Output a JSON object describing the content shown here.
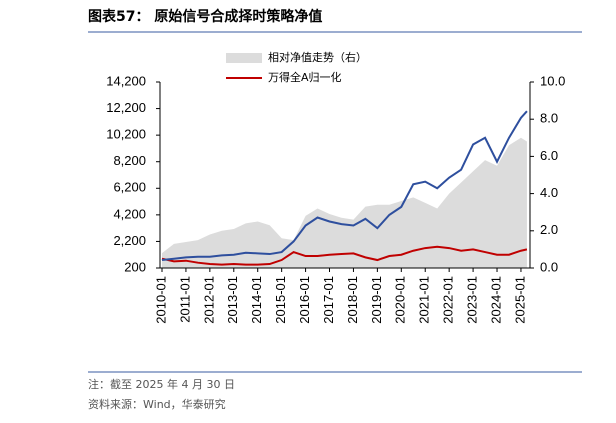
{
  "chart_data": {
    "type": "line",
    "title": "图表57： 原始信号合成择时策略净值",
    "note": "注：截至 2025 年 4 月 30 日",
    "source": "资料来源：Wind，华泰研究",
    "x": [
      "2010-01",
      "2010-07",
      "2011-01",
      "2011-07",
      "2012-01",
      "2012-07",
      "2013-01",
      "2013-07",
      "2014-01",
      "2014-07",
      "2015-01",
      "2015-07",
      "2016-01",
      "2016-07",
      "2017-01",
      "2017-07",
      "2018-01",
      "2018-07",
      "2019-01",
      "2019-07",
      "2020-01",
      "2020-07",
      "2021-01",
      "2021-07",
      "2022-01",
      "2022-07",
      "2023-01",
      "2023-07",
      "2024-01",
      "2024-07",
      "2025-01",
      "2025-04"
    ],
    "series": [
      {
        "name": "相对净值走势（右）",
        "type": "area",
        "axis": "y2",
        "color": "#dcdcdc",
        "values": [
          0.8,
          1.3,
          1.4,
          1.5,
          1.8,
          2.0,
          2.1,
          2.4,
          2.5,
          2.3,
          1.6,
          1.5,
          2.8,
          3.2,
          2.9,
          2.7,
          2.6,
          3.3,
          3.4,
          3.4,
          3.6,
          3.8,
          3.5,
          3.2,
          4.0,
          4.6,
          5.2,
          5.8,
          5.5,
          6.6,
          7.0,
          6.8
        ]
      },
      {
        "name": "万得全A归一化",
        "type": "line",
        "color": "#c00000",
        "values": [
          900,
          700,
          750,
          600,
          500,
          450,
          500,
          450,
          450,
          500,
          800,
          1400,
          1100,
          1100,
          1200,
          1250,
          1300,
          1000,
          800,
          1100,
          1200,
          1500,
          1700,
          1800,
          1700,
          1500,
          1600,
          1400,
          1200,
          1200,
          1500,
          1600
        ]
      },
      {
        "type": "line",
        "color": "#2e4f9e",
        "values": [
          800,
          900,
          1000,
          1050,
          1050,
          1150,
          1200,
          1350,
          1300,
          1250,
          1400,
          2200,
          3400,
          4000,
          3700,
          3500,
          3400,
          3900,
          3200,
          4200,
          4800,
          6500,
          6700,
          6200,
          7000,
          7600,
          9500,
          10000,
          8200,
          10000,
          11500,
          12000
        ]
      }
    ],
    "ylim": [
      200,
      14200
    ],
    "yticks": [
      {
        "value": 200,
        "label": "200"
      },
      {
        "value": 2200,
        "label": "2,200"
      },
      {
        "value": 4200,
        "label": "4,200"
      },
      {
        "value": 6200,
        "label": "6,200"
      },
      {
        "value": 8200,
        "label": "8,200"
      },
      {
        "value": 10200,
        "label": "10,200"
      },
      {
        "value": 12200,
        "label": "12,200"
      },
      {
        "value": 14200,
        "label": "14,200"
      }
    ],
    "y2lim": [
      0,
      10
    ],
    "y2ticks": [
      {
        "value": 0,
        "label": "0.0"
      },
      {
        "value": 2,
        "label": "2.0"
      },
      {
        "value": 4,
        "label": "4.0"
      },
      {
        "value": 6,
        "label": "6.0"
      },
      {
        "value": 8,
        "label": "8.0"
      },
      {
        "value": 10,
        "label": "10.0"
      }
    ],
    "xticks": [
      "2010-01",
      "2011-01",
      "2012-01",
      "2013-01",
      "2014-01",
      "2015-01",
      "2016-01",
      "2017-01",
      "2018-01",
      "2019-01",
      "2020-01",
      "2021-01",
      "2022-01",
      "2023-01",
      "2024-01",
      "2025-01"
    ]
  }
}
